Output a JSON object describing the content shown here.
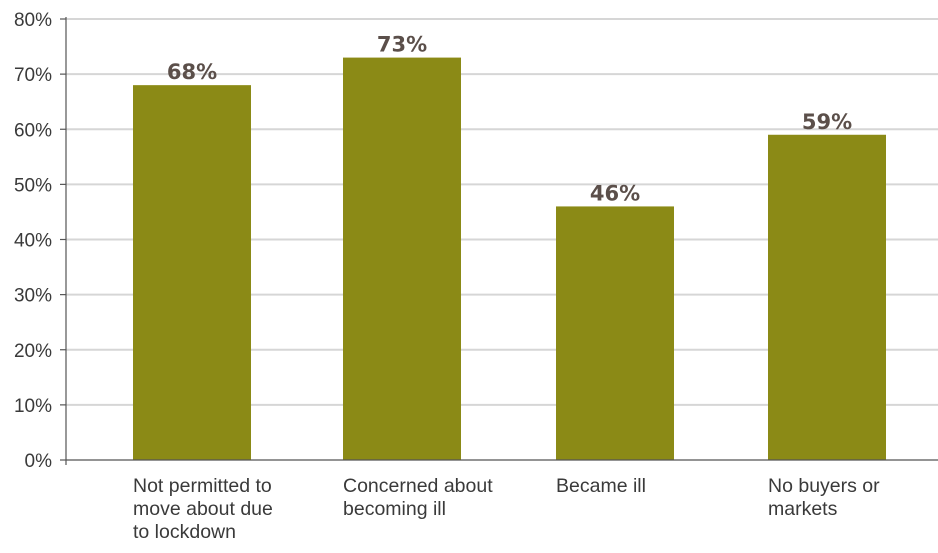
{
  "chart_data": {
    "type": "bar",
    "categories": [
      [
        "Not permitted to",
        "move about due",
        "to lockdown"
      ],
      [
        "Concerned about",
        "becoming ill"
      ],
      [
        "Became ill"
      ],
      [
        "No buyers or",
        "markets"
      ]
    ],
    "values": [
      68,
      73,
      46,
      59
    ],
    "data_labels": [
      "68%",
      "73%",
      "46%",
      "59%"
    ],
    "title": "",
    "xlabel": "",
    "ylabel": "",
    "ylim": [
      0,
      80
    ],
    "y_ticks": [
      0,
      10,
      20,
      30,
      40,
      50,
      60,
      70,
      80
    ],
    "y_tick_labels": [
      "0%",
      "10%",
      "20%",
      "30%",
      "40%",
      "50%",
      "60%",
      "70%",
      "80%"
    ],
    "grid": true,
    "legend": "none",
    "colors": {
      "bar": "#8b8a16",
      "grid": "#d6d6d6",
      "axis": "#555555",
      "data_label": "#5b4f4a",
      "text": "#3a3a3a"
    }
  }
}
